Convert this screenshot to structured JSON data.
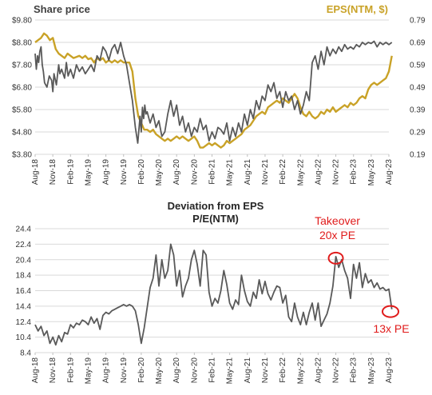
{
  "chart_data": [
    {
      "type": "line",
      "title": "",
      "left_axis_title": "Share price",
      "right_axis_title": "EPS(NTM, $)",
      "y_ticks_left": [
        "$3.80",
        "$4.80",
        "$5.80",
        "$6.80",
        "$7.80",
        "$8.80",
        "$9.80"
      ],
      "y_ticks_right": [
        "0.19",
        "0.29",
        "0.39",
        "0.49",
        "0.59",
        "0.69",
        "0.79"
      ],
      "ylim_left": [
        3.8,
        9.8
      ],
      "ylim_right": [
        0.19,
        0.79
      ],
      "x_ticks": [
        "Aug-18",
        "Nov-18",
        "Feb-19",
        "May-19",
        "Aug-19",
        "Nov-19",
        "Feb-20",
        "May-20",
        "Aug-20",
        "Nov-20",
        "Feb-21",
        "May-21",
        "Aug-21",
        "Nov-21",
        "Feb-22",
        "May-22",
        "Aug-22",
        "Nov-22",
        "Feb-23",
        "May-23",
        "Aug-23"
      ],
      "colors": {
        "share_price": "#595959",
        "eps": "#c9a227",
        "grid": "#d9d9d9"
      },
      "series": [
        {
          "name": "Share price",
          "axis": "left",
          "x": [
            0,
            0.2,
            0.4,
            0.6,
            0.8,
            1.0,
            1.2,
            1.4,
            1.6,
            2.0,
            2.4,
            2.8,
            3.0,
            3.2,
            3.6,
            4.0,
            4.2,
            4.5,
            5.0,
            5.3,
            5.6,
            6.0,
            6.5,
            7.0,
            7.5,
            8.0,
            8.5,
            9.0,
            9.5,
            10.0,
            10.5,
            11.0,
            11.5,
            12.0,
            12.5,
            13.0,
            13.5,
            14.0,
            14.5,
            15.0,
            15.5,
            16.0,
            16.5,
            17.0,
            17.4,
            17.8,
            18.0,
            18.2,
            18.4,
            18.6,
            18.8,
            19.0,
            19.5,
            20.0,
            20.5,
            21.0,
            21.5,
            22.0,
            22.5,
            23.0,
            23.5,
            24.0,
            24.5,
            25.0,
            25.5,
            26.0,
            26.5,
            27.0,
            27.5,
            28.0,
            28.5,
            29.0,
            29.5,
            30.0,
            30.5,
            31.0,
            31.5,
            32.0,
            32.5,
            33.0,
            33.5,
            34.0,
            34.5,
            35.0,
            35.5,
            36.0,
            36.5,
            37.0,
            37.5,
            38.0,
            38.5,
            39.0,
            39.5,
            40.0,
            40.5,
            41.0,
            41.5,
            42.0,
            42.5,
            43.0,
            43.5,
            44.0,
            44.5,
            45.0,
            45.5,
            46.0,
            46.5,
            47.0,
            47.5,
            48.0,
            48.5,
            49.0,
            49.5,
            50.0,
            50.5,
            51.0,
            51.5,
            52.0,
            52.5,
            53.0,
            53.5,
            54.0,
            54.5,
            55.0,
            55.5,
            56.0,
            56.5,
            57.0,
            57.5,
            58.0,
            58.5,
            59.0,
            59.5,
            60.0,
            60.5
          ],
          "values": [
            8.3,
            7.6,
            8.2,
            7.9,
            8.4,
            8.6,
            7.8,
            7.5,
            7.0,
            6.8,
            7.3,
            7.1,
            6.6,
            7.4,
            6.9,
            7.8,
            7.4,
            7.6,
            7.2,
            7.9,
            7.3,
            7.6,
            7.2,
            7.8,
            7.5,
            7.7,
            7.4,
            7.6,
            7.8,
            7.5,
            8.2,
            8.0,
            8.6,
            8.4,
            8.0,
            8.5,
            8.7,
            8.3,
            8.8,
            8.2,
            7.8,
            7.0,
            6.2,
            5.0,
            4.3,
            5.5,
            4.8,
            5.9,
            5.4,
            6.0,
            5.6,
            5.7,
            5.2,
            5.6,
            5.0,
            5.3,
            4.6,
            4.8,
            5.6,
            6.2,
            5.5,
            6.0,
            5.1,
            5.5,
            4.8,
            5.2,
            4.6,
            5.0,
            4.8,
            5.4,
            4.9,
            5.1,
            4.4,
            4.8,
            4.5,
            5.0,
            4.9,
            4.7,
            5.2,
            4.4,
            5.0,
            4.6,
            5.2,
            4.8,
            5.6,
            5.1,
            5.8,
            5.4,
            6.2,
            5.8,
            6.4,
            6.2,
            6.9,
            6.6,
            7.0,
            6.3,
            6.6,
            5.9,
            6.6,
            6.2,
            6.4,
            5.8,
            6.2,
            5.6,
            6.0,
            6.6,
            6.2,
            7.9,
            8.2,
            7.6,
            8.4,
            7.8,
            8.6,
            8.2,
            8.5,
            8.3,
            8.6,
            8.4,
            8.7,
            8.5,
            8.6,
            8.5,
            8.7,
            8.6,
            8.8,
            8.7,
            8.8,
            8.75,
            8.85,
            8.6,
            8.8,
            8.7,
            8.8,
            8.7,
            8.8
          ]
        },
        {
          "name": "EPS(NTM, $)",
          "axis": "right",
          "x": [
            0,
            0.5,
            1.0,
            1.5,
            2.0,
            2.5,
            3.0,
            3.5,
            4.0,
            4.5,
            5.0,
            5.5,
            6.0,
            6.5,
            7.0,
            7.5,
            8.0,
            8.5,
            9.0,
            9.5,
            10.0,
            10.5,
            11.0,
            11.5,
            12.0,
            12.5,
            13.0,
            13.5,
            14.0,
            14.5,
            15.0,
            15.5,
            16.0,
            16.5,
            17.0,
            17.5,
            18.0,
            18.5,
            19.0,
            19.5,
            20.0,
            20.5,
            21.0,
            21.5,
            22.0,
            22.5,
            23.0,
            23.5,
            24.0,
            24.5,
            25.0,
            25.5,
            26.0,
            26.5,
            27.0,
            27.5,
            28.0,
            28.5,
            29.0,
            29.5,
            30.0,
            30.5,
            31.0,
            31.5,
            32.0,
            32.5,
            33.0,
            33.5,
            34.0,
            34.5,
            35.0,
            35.5,
            36.0,
            36.5,
            37.0,
            37.5,
            38.0,
            38.5,
            39.0,
            39.5,
            40.0,
            40.5,
            41.0,
            41.5,
            42.0,
            42.5,
            43.0,
            43.5,
            44.0,
            44.5,
            45.0,
            45.5,
            46.0,
            46.5,
            47.0,
            47.5,
            48.0,
            48.5,
            49.0,
            49.5,
            50.0,
            50.5,
            51.0,
            51.5,
            52.0,
            52.5,
            53.0,
            53.5,
            54.0,
            54.5,
            55.0,
            55.5,
            56.0,
            56.5,
            57.0,
            57.5,
            58.0,
            58.5,
            59.0,
            59.5,
            60.0,
            60.5
          ],
          "values": [
            0.69,
            0.7,
            0.71,
            0.73,
            0.72,
            0.7,
            0.71,
            0.66,
            0.64,
            0.63,
            0.62,
            0.64,
            0.63,
            0.62,
            0.625,
            0.63,
            0.62,
            0.63,
            0.615,
            0.62,
            0.6,
            0.62,
            0.61,
            0.62,
            0.6,
            0.61,
            0.6,
            0.61,
            0.6,
            0.61,
            0.6,
            0.6,
            0.6,
            0.56,
            0.44,
            0.36,
            0.33,
            0.3,
            0.3,
            0.29,
            0.3,
            0.28,
            0.27,
            0.26,
            0.25,
            0.26,
            0.25,
            0.26,
            0.27,
            0.26,
            0.27,
            0.26,
            0.25,
            0.26,
            0.27,
            0.25,
            0.22,
            0.22,
            0.23,
            0.24,
            0.23,
            0.24,
            0.23,
            0.22,
            0.23,
            0.25,
            0.24,
            0.25,
            0.26,
            0.27,
            0.28,
            0.3,
            0.31,
            0.32,
            0.34,
            0.36,
            0.37,
            0.38,
            0.37,
            0.4,
            0.41,
            0.42,
            0.43,
            0.42,
            0.44,
            0.43,
            0.42,
            0.44,
            0.46,
            0.44,
            0.4,
            0.37,
            0.36,
            0.38,
            0.36,
            0.35,
            0.36,
            0.38,
            0.37,
            0.39,
            0.38,
            0.4,
            0.38,
            0.39,
            0.4,
            0.41,
            0.4,
            0.42,
            0.41,
            0.42,
            0.44,
            0.45,
            0.44,
            0.48,
            0.5,
            0.51,
            0.5,
            0.51,
            0.52,
            0.53,
            0.56,
            0.63
          ]
        }
      ]
    },
    {
      "type": "line",
      "title": "Deviation from EPS",
      "subtitle": "P/E(NTM)",
      "y_ticks": [
        "8.4",
        "10.4",
        "12.4",
        "14.4",
        "16.4",
        "18.4",
        "20.4",
        "22.4",
        "24.4"
      ],
      "ylim": [
        8.4,
        24.4
      ],
      "x_ticks": [
        "Aug-18",
        "Nov-18",
        "Feb-19",
        "May-19",
        "Aug-19",
        "Nov-19",
        "Feb-20",
        "May-20",
        "Aug-20",
        "Nov-20",
        "Feb-21",
        "May-21",
        "Aug-21",
        "Nov-21",
        "Feb-22",
        "May-22",
        "Aug-22",
        "Nov-22",
        "Feb-23",
        "May-23",
        "Aug-23"
      ],
      "colors": {
        "pe": "#595959",
        "grid": "#d9d9d9",
        "annotation": "#e01b1b"
      },
      "annotations": [
        {
          "text_lines": [
            "Takeover",
            "20x PE"
          ],
          "x": 51,
          "y": 20.6
        },
        {
          "text_lines": [
            "13x PE"
          ],
          "x": 60,
          "y": 13.6
        }
      ],
      "series": [
        {
          "name": "P/E(NTM)",
          "x": [
            0,
            0.5,
            1.0,
            1.5,
            2.0,
            2.5,
            3.0,
            3.5,
            4.0,
            4.5,
            5.0,
            5.5,
            6.0,
            6.5,
            7.0,
            7.5,
            8.0,
            8.5,
            9.0,
            9.5,
            10.0,
            10.5,
            11.0,
            11.5,
            12.0,
            12.5,
            13.0,
            13.5,
            14.0,
            14.5,
            15.0,
            15.5,
            16.0,
            16.5,
            17.0,
            17.5,
            18.0,
            18.5,
            19.0,
            19.5,
            20.0,
            20.5,
            21.0,
            21.5,
            22.0,
            22.5,
            23.0,
            23.5,
            24.0,
            24.5,
            25.0,
            25.5,
            26.0,
            26.5,
            27.0,
            27.5,
            28.0,
            28.5,
            29.0,
            29.5,
            30.0,
            30.5,
            31.0,
            31.5,
            32.0,
            32.5,
            33.0,
            33.5,
            34.0,
            34.5,
            35.0,
            35.5,
            36.0,
            36.5,
            37.0,
            37.5,
            38.0,
            38.5,
            39.0,
            39.5,
            40.0,
            40.5,
            41.0,
            41.5,
            42.0,
            42.5,
            43.0,
            43.5,
            44.0,
            44.5,
            45.0,
            45.5,
            46.0,
            46.5,
            47.0,
            47.5,
            48.0,
            48.5,
            49.0,
            49.5,
            50.0,
            50.5,
            51.0,
            51.5,
            52.0,
            52.5,
            53.0,
            53.5,
            54.0,
            54.5,
            55.0,
            55.5,
            56.0,
            56.5,
            57.0,
            57.5,
            58.0,
            58.5,
            59.0,
            59.5,
            60.0,
            60.5
          ],
          "values": [
            12.0,
            11.2,
            11.8,
            10.6,
            11.2,
            9.6,
            10.4,
            9.4,
            10.6,
            9.8,
            11.0,
            10.8,
            12.0,
            11.6,
            12.2,
            12.0,
            12.6,
            12.4,
            12.0,
            13.0,
            12.2,
            12.8,
            11.4,
            13.2,
            13.6,
            13.4,
            13.8,
            14.0,
            14.2,
            14.4,
            14.6,
            14.4,
            14.6,
            14.4,
            13.8,
            12.0,
            9.6,
            11.6,
            14.2,
            16.8,
            18.0,
            21.0,
            17.0,
            20.4,
            18.0,
            19.0,
            22.4,
            21.0,
            17.0,
            19.0,
            15.6,
            17.0,
            18.0,
            20.4,
            21.6,
            19.8,
            17.0,
            21.6,
            21.0,
            16.2,
            14.4,
            15.4,
            14.8,
            16.4,
            19.0,
            17.2,
            14.8,
            14.0,
            15.2,
            14.6,
            18.4,
            16.4,
            15.0,
            14.4,
            16.2,
            15.4,
            17.8,
            16.0,
            17.6,
            16.0,
            15.2,
            16.2,
            17.0,
            16.8,
            14.8,
            15.8,
            13.0,
            12.4,
            14.8,
            13.0,
            12.0,
            13.6,
            12.0,
            13.6,
            14.8,
            12.6,
            14.8,
            11.8,
            12.6,
            13.4,
            14.8,
            17.0,
            20.8,
            19.4,
            20.4,
            19.0,
            18.0,
            15.4,
            19.8,
            18.0,
            20.0,
            16.8,
            18.6,
            17.4,
            17.8,
            16.8,
            17.4,
            16.6,
            16.8,
            16.4,
            16.6,
            14.0
          ]
        }
      ]
    }
  ]
}
